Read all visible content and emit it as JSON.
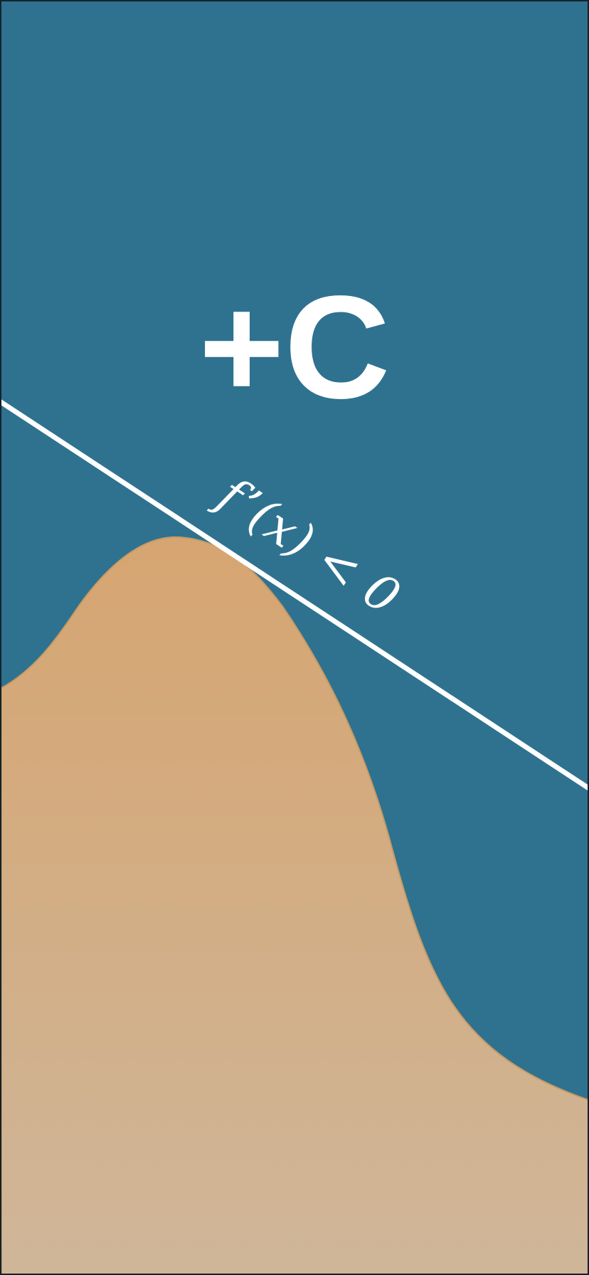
{
  "title": "+C",
  "formula": "f’(x) < 0",
  "colors": {
    "background": "#2e7290",
    "hill_top": "#d6a571",
    "hill_bottom": "#cfb699",
    "line": "#ffffff",
    "text": "#ffffff",
    "frame": "#10232c"
  }
}
